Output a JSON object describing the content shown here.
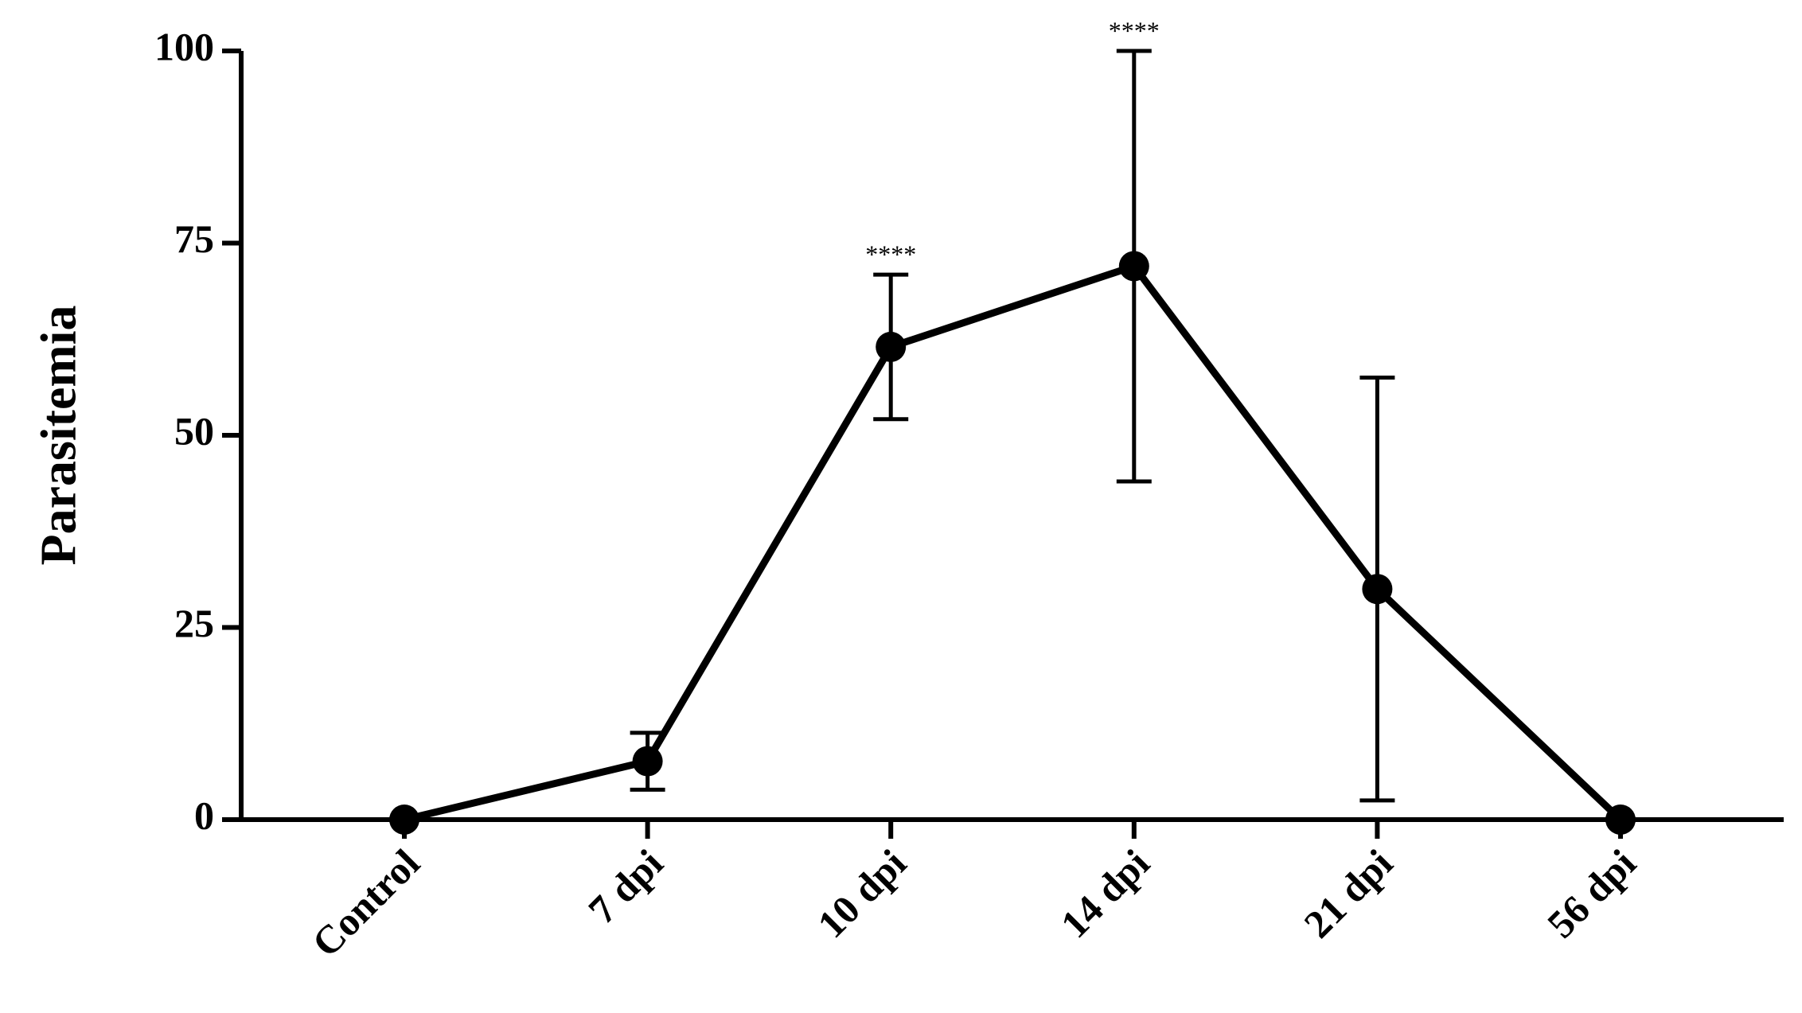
{
  "chart_data": {
    "type": "line",
    "y_label": "Parasitemia",
    "categories": [
      "Control",
      "7 dpi",
      "10 dpi",
      "14 dpi",
      "21 dpi",
      "56 dpi"
    ],
    "series": [
      {
        "color": "#000000",
        "values": [
          0,
          7.6,
          61.5,
          72,
          30,
          0
        ],
        "errors": [
          null,
          3.7,
          9.4,
          28,
          27.5,
          null
        ]
      }
    ],
    "annotations": [
      {
        "category": "10 dpi",
        "text": "****"
      },
      {
        "category": "14 dpi",
        "text": "****"
      }
    ],
    "ylim": [
      0,
      100
    ],
    "yticks": [
      0,
      25,
      50,
      75,
      100
    ]
  }
}
